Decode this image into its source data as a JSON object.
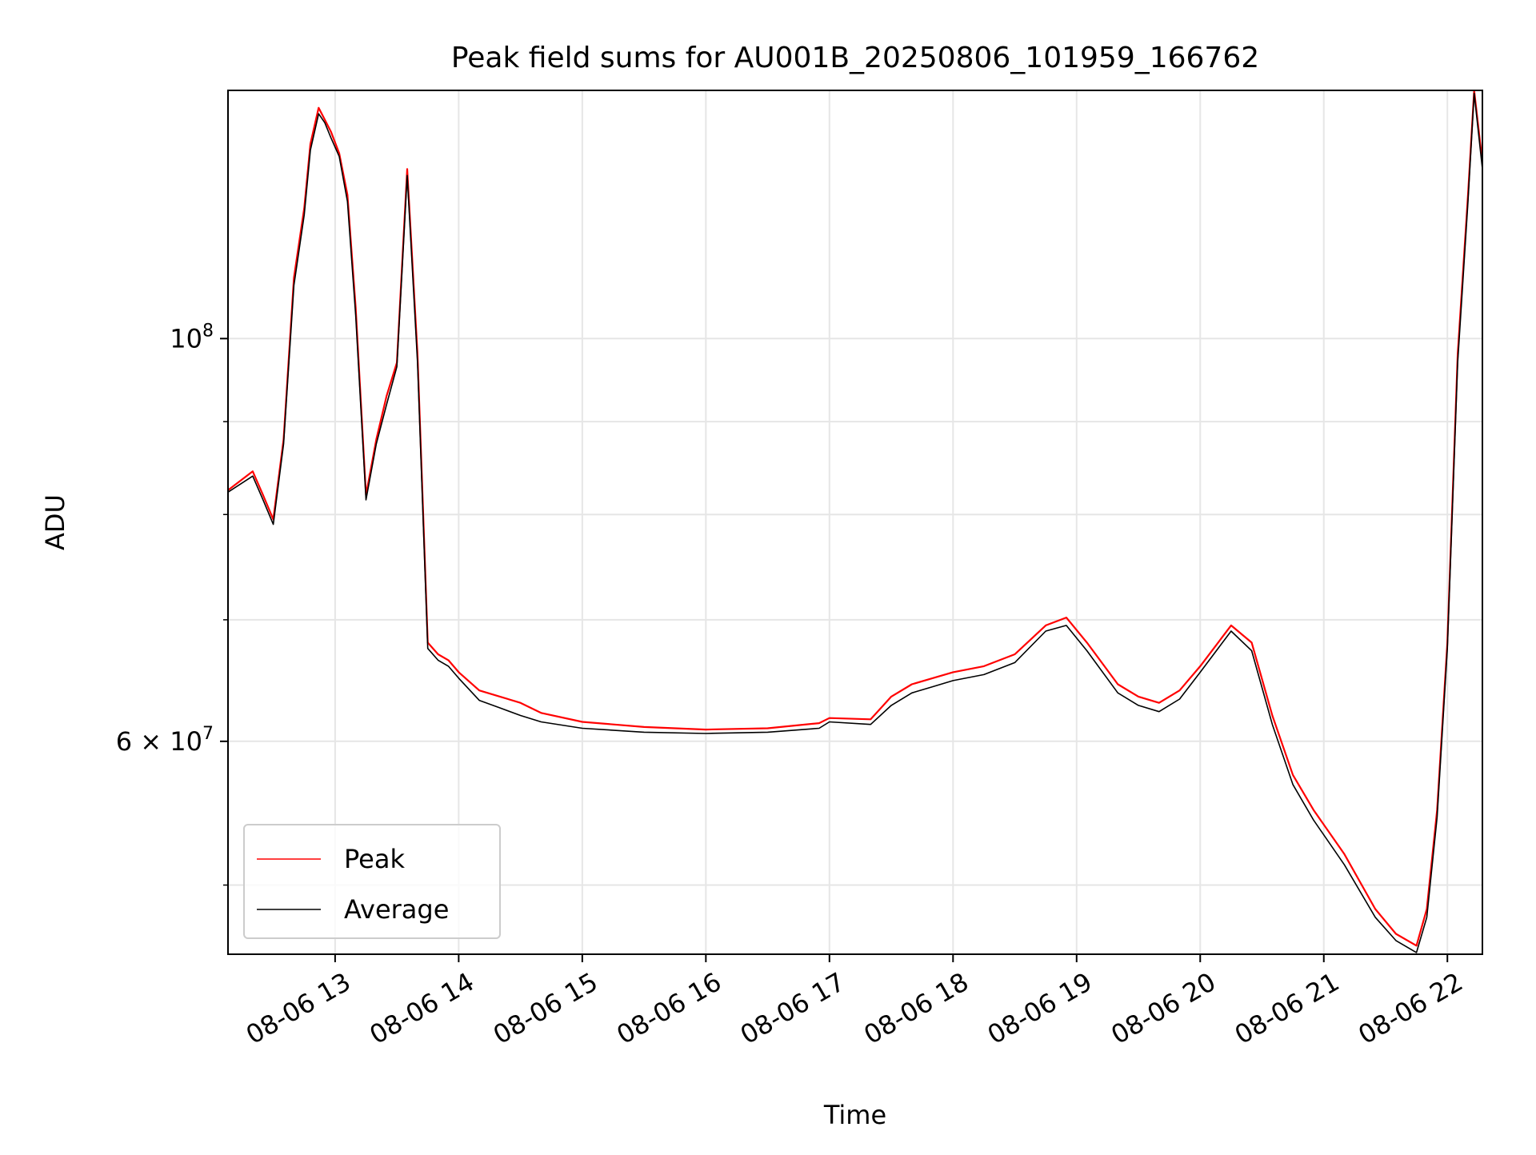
{
  "chart_data": {
    "type": "line",
    "title": "Peak field sums for AU001B_20250806_101959_166762",
    "xlabel": "Time",
    "ylabel": "ADU",
    "yscale": "log",
    "grid": true,
    "legend_position": "lower-left",
    "xlim": [
      "08-06 12:08",
      "08-06 22:17"
    ],
    "ylim": [
      45800000,
      137000000
    ],
    "x_ticks": [
      "08-06 13",
      "08-06 14",
      "08-06 15",
      "08-06 16",
      "08-06 17",
      "08-06 18",
      "08-06 19",
      "08-06 20",
      "08-06 21",
      "08-06 22"
    ],
    "y_ticks": [
      {
        "label": "10",
        "exponent": "8",
        "value": 100000000
      },
      {
        "label": "6 × 10",
        "exponent": "7",
        "value": 60000000
      }
    ],
    "colors": {
      "peak": "#ff0000",
      "average": "#000000",
      "grid": "#e6e6e6"
    },
    "series": [
      {
        "name": "Peak",
        "color": "#ff0000",
        "x": [
          "08-06 12:08",
          "08-06 12:20",
          "08-06 12:25",
          "08-06 12:30",
          "08-06 12:35",
          "08-06 12:40",
          "08-06 12:45",
          "08-06 12:48",
          "08-06 12:52",
          "08-06 12:55",
          "08-06 12:58",
          "08-06 13:02",
          "08-06 13:06",
          "08-06 13:10",
          "08-06 13:15",
          "08-06 13:20",
          "08-06 13:25",
          "08-06 13:30",
          "08-06 13:35",
          "08-06 13:40",
          "08-06 13:45",
          "08-06 13:50",
          "08-06 13:55",
          "08-06 14:00",
          "08-06 14:10",
          "08-06 14:20",
          "08-06 14:30",
          "08-06 14:40",
          "08-06 15:00",
          "08-06 15:30",
          "08-06 16:00",
          "08-06 16:30",
          "08-06 16:55",
          "08-06 17:00",
          "08-06 17:20",
          "08-06 17:30",
          "08-06 17:40",
          "08-06 17:50",
          "08-06 18:00",
          "08-06 18:15",
          "08-06 18:30",
          "08-06 18:45",
          "08-06 18:55",
          "08-06 19:05",
          "08-06 19:20",
          "08-06 19:30",
          "08-06 19:40",
          "08-06 19:50",
          "08-06 20:00",
          "08-06 20:15",
          "08-06 20:25",
          "08-06 20:35",
          "08-06 20:45",
          "08-06 20:55",
          "08-06 21:10",
          "08-06 21:25",
          "08-06 21:35",
          "08-06 21:45",
          "08-06 21:50",
          "08-06 21:55",
          "08-06 22:00",
          "08-06 22:05",
          "08-06 22:10",
          "08-06 22:13",
          "08-06 22:17"
        ],
        "y": [
          82500000,
          84500000,
          82000000,
          79500000,
          88000000,
          108000000,
          118000000,
          128000000,
          134000000,
          132000000,
          130000000,
          126500000,
          120000000,
          104000000,
          82000000,
          88000000,
          93000000,
          97000000,
          124000000,
          98000000,
          68000000,
          67000000,
          66500000,
          65500000,
          64000000,
          63500000,
          63000000,
          62200000,
          61500000,
          61100000,
          60900000,
          61000000,
          61400000,
          61800000,
          61700000,
          63500000,
          64500000,
          65000000,
          65500000,
          66000000,
          67000000,
          69500000,
          70200000,
          68000000,
          64500000,
          63500000,
          63000000,
          64000000,
          66000000,
          69500000,
          68000000,
          62000000,
          57500000,
          55000000,
          52000000,
          48500000,
          47000000,
          46300000,
          48500000,
          55000000,
          68000000,
          98000000,
          120000000,
          137000000,
          125000000
        ]
      },
      {
        "name": "Average",
        "color": "#000000",
        "x": [
          "08-06 12:08",
          "08-06 12:20",
          "08-06 12:25",
          "08-06 12:30",
          "08-06 12:35",
          "08-06 12:40",
          "08-06 12:45",
          "08-06 12:48",
          "08-06 12:52",
          "08-06 12:55",
          "08-06 12:58",
          "08-06 13:02",
          "08-06 13:06",
          "08-06 13:10",
          "08-06 13:15",
          "08-06 13:20",
          "08-06 13:25",
          "08-06 13:30",
          "08-06 13:35",
          "08-06 13:40",
          "08-06 13:45",
          "08-06 13:50",
          "08-06 13:55",
          "08-06 14:00",
          "08-06 14:10",
          "08-06 14:20",
          "08-06 14:30",
          "08-06 14:40",
          "08-06 15:00",
          "08-06 15:30",
          "08-06 16:00",
          "08-06 16:30",
          "08-06 16:55",
          "08-06 17:00",
          "08-06 17:20",
          "08-06 17:30",
          "08-06 17:40",
          "08-06 17:50",
          "08-06 18:00",
          "08-06 18:15",
          "08-06 18:30",
          "08-06 18:45",
          "08-06 18:55",
          "08-06 19:05",
          "08-06 19:20",
          "08-06 19:30",
          "08-06 19:40",
          "08-06 19:50",
          "08-06 20:00",
          "08-06 20:15",
          "08-06 20:25",
          "08-06 20:35",
          "08-06 20:45",
          "08-06 20:55",
          "08-06 21:10",
          "08-06 21:25",
          "08-06 21:35",
          "08-06 21:45",
          "08-06 21:50",
          "08-06 21:55",
          "08-06 22:00",
          "08-06 22:05",
          "08-06 22:10",
          "08-06 22:13",
          "08-06 22:17"
        ],
        "y": [
          82300000,
          84000000,
          81500000,
          79000000,
          87500000,
          107000000,
          117000000,
          127000000,
          133000000,
          131500000,
          129000000,
          126000000,
          119000000,
          103000000,
          81500000,
          87500000,
          92000000,
          96500000,
          123000000,
          97000000,
          67500000,
          66500000,
          66000000,
          65000000,
          63200000,
          62600000,
          62000000,
          61500000,
          61000000,
          60700000,
          60600000,
          60700000,
          61000000,
          61500000,
          61300000,
          62800000,
          63800000,
          64300000,
          64800000,
          65300000,
          66300000,
          69000000,
          69500000,
          67300000,
          63800000,
          62800000,
          62300000,
          63300000,
          65500000,
          69000000,
          67300000,
          61300000,
          56800000,
          54300000,
          51300000,
          48000000,
          46600000,
          45900000,
          48000000,
          54500000,
          67500000,
          97000000,
          119000000,
          136500000,
          124000000
        ]
      }
    ]
  }
}
